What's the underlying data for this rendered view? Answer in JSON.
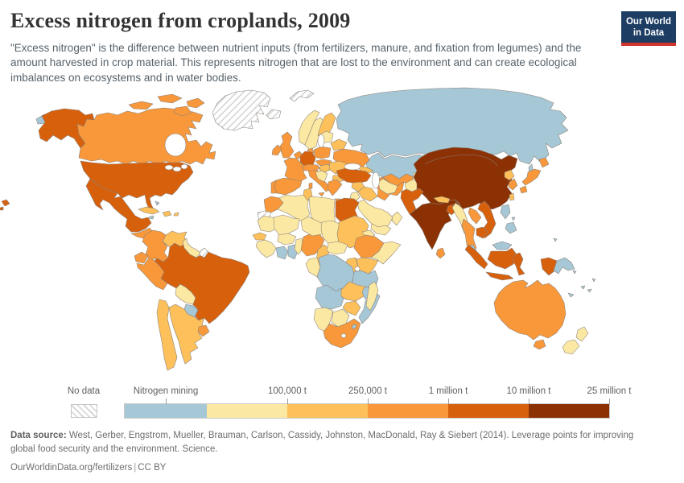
{
  "header": {
    "title": "Excess nitrogen from croplands, 2009",
    "subtitle": "\"Excess nitrogen\" is the difference between nutrient inputs (from fertilizers, manure, and fixation from legumes) and the amount harvested in crop material. This represents nitrogen that are lost to the environment and can create ecological imbalances on ecosystems and in water bodies.",
    "logo": {
      "line1": "Our World",
      "line2": "in Data"
    }
  },
  "colors": {
    "logo_bg": "#1d3d63",
    "logo_accent": "#d0342c",
    "border": "#8a8178",
    "categories": {
      "mining": "#a6c7d6",
      "lt100k": "#fbe8a3",
      "lt250k": "#fdc05a",
      "lt1m": "#f8983a",
      "lt10m": "#d7600d",
      "lt25m": "#8c3104"
    }
  },
  "legend": {
    "no_data_label": "No data",
    "segments": [
      {
        "label": "Nitrogen mining",
        "category": "mining",
        "label_anchor": "center"
      },
      {
        "label": "100,000 t",
        "category": "lt100k",
        "label_anchor": "end"
      },
      {
        "label": "250,000 t",
        "category": "lt250k",
        "label_anchor": "end"
      },
      {
        "label": "1 million t",
        "category": "lt1m",
        "label_anchor": "end"
      },
      {
        "label": "10 million t",
        "category": "lt10m",
        "label_anchor": "end"
      },
      {
        "label": "25 million t",
        "category": "lt25m",
        "label_anchor": "end"
      }
    ]
  },
  "map": {
    "regions": {
      "chukotka-overflow": "mining",
      "alaska": "lt10m",
      "canada": "lt1m",
      "greenland": "nodata",
      "united-states": "lt10m",
      "hawaii": "lt10m",
      "mexico": "lt10m",
      "central-america": "lt1m",
      "cuba": "lt250k",
      "hispaniola": "lt250k",
      "jamaica": "mining",
      "puerto-rico": "lt250k",
      "bahamas": "mining",
      "colombia": "lt1m",
      "venezuela": "lt250k",
      "guyana-suriname": "lt100k",
      "french-guiana": "nodata",
      "ecuador": "lt1m",
      "peru": "lt1m",
      "brazil": "lt10m",
      "bolivia": "lt100k",
      "paraguay": "mining",
      "chile": "lt250k",
      "argentina": "lt250k",
      "uruguay": "lt1m",
      "iceland": "nodata",
      "svalbard": "nodata",
      "norway": "lt100k",
      "sweden": "lt100k",
      "finland": "lt250k",
      "denmark": "lt1m",
      "united-kingdom": "lt1m",
      "ireland": "lt1m",
      "benelux": "lt1m",
      "germany": "lt10m",
      "france": "lt1m",
      "portugal": "lt1m",
      "spain": "lt1m",
      "italy": "lt1m",
      "alpine": "lt1m",
      "czech-slovakia": "lt1m",
      "poland": "lt1m",
      "baltics": "lt100k",
      "belarus": "lt250k",
      "ukraine": "lt1m",
      "hungary": "lt250k",
      "romania": "lt250k",
      "west-balkans": "lt100k",
      "bulgaria": "lt250k",
      "greece": "lt1m",
      "kaliningrad": "mining",
      "russia": "mining",
      "sakhalin": "mining",
      "kazakhstan": "mining",
      "caucasus": "lt250k",
      "uzbekistan": "lt1m",
      "turkmenistan": "lt100k",
      "kyrgyzstan": "lt100k",
      "tajikistan": "lt100k",
      "afghanistan": "lt100k",
      "turkey": "lt10m",
      "syria": "lt250k",
      "iraq": "lt250k",
      "iran": "lt1m",
      "israel-jordan": "lt100k",
      "saudi-arabia": "lt100k",
      "yemen": "lt100k",
      "oman": "lt100k",
      "morocco": "lt1m",
      "western-sahara": "nodata",
      "algeria": "lt100k",
      "tunisia": "lt250k",
      "libya": "lt100k",
      "egypt": "lt10m",
      "mauritania": "lt100k",
      "mali": "lt100k",
      "senegal": "lt250k",
      "guinea": "lt100k",
      "ivory-coast": "mining",
      "ghana": "mining",
      "burkina-faso": "lt100k",
      "benin-togo": "lt100k",
      "nigeria": "lt1m",
      "niger": "lt100k",
      "chad": "lt100k",
      "sudan": "lt250k",
      "eritrea": "lt100k",
      "ethiopia": "lt1m",
      "somalia": "lt100k",
      "kenya": "lt250k",
      "uganda": "lt250k",
      "cameroon": "lt250k",
      "central-african-republic": "lt100k",
      "gabon-congo": "lt100k",
      "dr-congo": "mining",
      "tanzania": "mining",
      "angola": "mining",
      "zambia": "lt250k",
      "malawi": "mining",
      "mozambique": "mining",
      "zimbabwe": "lt250k",
      "namibia": "lt100k",
      "botswana": "lt100k",
      "south-africa": "lt1m",
      "swaziland": "mining",
      "madagascar": "lt100k",
      "pakistan": "lt10m",
      "india": "lt25m",
      "nepal": "lt250k",
      "bangladesh": "lt10m",
      "sri-lanka": "lt1m",
      "china": "lt25m",
      "north-korea": "lt250k",
      "south-korea": "lt1m",
      "japan": "lt1m",
      "taiwan": "lt250k",
      "myanmar": "lt100k",
      "thailand": "lt1m",
      "laos": "lt1m",
      "vietnam": "lt10m",
      "cambodia": "lt10m",
      "malaysia": "mining",
      "indonesia": "lt10m",
      "philippines": "mining",
      "papua-new-guinea": "mining",
      "pacific-islands": "mining",
      "new-caledonia": "mining",
      "fiji": "mining",
      "australia": "lt1m",
      "new-zealand": "lt100k"
    }
  },
  "footer": {
    "source_label": "Data source:",
    "source_text": "West, Gerber, Engstrom, Mueller, Brauman, Carlson, Cassidy, Johnston, MacDonald, Ray & Siebert (2014). Leverage points for improving global food security and the environment. Science.",
    "link_text": "OurWorldinData.org/fertilizers",
    "license": "CC BY"
  }
}
